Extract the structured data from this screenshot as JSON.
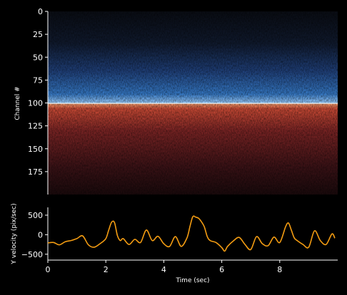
{
  "chart_data": [
    {
      "type": "heatmap",
      "title": "",
      "xlabel": "",
      "ylabel": "Channel #",
      "ylim": [
        200,
        0
      ],
      "yticks": [
        0,
        25,
        50,
        75,
        100,
        125,
        150,
        175
      ],
      "xlim": [
        0,
        10
      ],
      "colormap": "diverging: blue (channels 0-100, brightening toward 100) / red (channels 100-200, brightest just below 100)",
      "boundary_channel": 100,
      "colors": {
        "cold": "#3d8bd4",
        "cold_peak": "#bfe4ff",
        "hot": "#c0392b",
        "hot_peak": "#ffb070",
        "background": "#000000"
      }
    },
    {
      "type": "line",
      "title": "",
      "xlabel": "Time (sec)",
      "ylabel": "Y velocity (pix/sec)",
      "xlim": [
        0,
        10
      ],
      "ylim": [
        -650,
        700
      ],
      "xticks": [
        0,
        2,
        4,
        6,
        8
      ],
      "yticks": [
        -500,
        0,
        500
      ],
      "color": "#f39c12",
      "grid": false,
      "x": [
        0.0,
        0.2,
        0.4,
        0.6,
        0.8,
        1.0,
        1.2,
        1.4,
        1.6,
        1.8,
        2.0,
        2.1,
        2.2,
        2.3,
        2.4,
        2.5,
        2.6,
        2.8,
        3.0,
        3.2,
        3.4,
        3.6,
        3.8,
        4.0,
        4.2,
        4.4,
        4.6,
        4.8,
        4.9,
        5.0,
        5.1,
        5.2,
        5.3,
        5.4,
        5.5,
        5.6,
        5.8,
        6.0,
        6.1,
        6.2,
        6.4,
        6.6,
        6.8,
        7.0,
        7.2,
        7.4,
        7.6,
        7.8,
        8.0,
        8.2,
        8.3,
        8.4,
        8.5,
        8.6,
        8.8,
        9.0,
        9.2,
        9.4,
        9.6,
        9.8,
        9.9
      ],
      "y": [
        -210,
        -200,
        -260,
        -180,
        -150,
        -100,
        -30,
        -260,
        -320,
        -230,
        -100,
        120,
        320,
        310,
        -20,
        -150,
        -100,
        -250,
        -120,
        -200,
        120,
        -150,
        -40,
        -230,
        -300,
        -50,
        -300,
        -80,
        200,
        460,
        450,
        420,
        330,
        200,
        -50,
        -150,
        -200,
        -330,
        -420,
        -300,
        -160,
        -70,
        -250,
        -380,
        -50,
        -230,
        -280,
        -60,
        -200,
        200,
        300,
        120,
        -80,
        -150,
        -250,
        -320,
        100,
        -150,
        -250,
        20,
        -90
      ]
    }
  ]
}
